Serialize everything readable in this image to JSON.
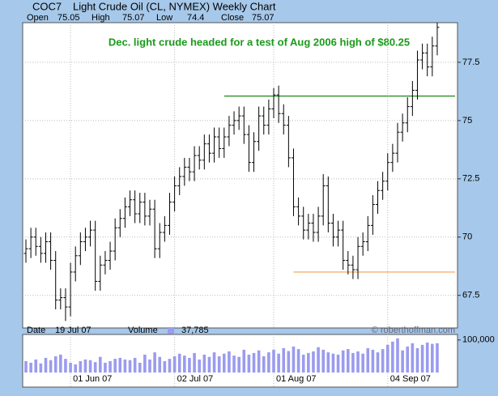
{
  "chart_data": {
    "type": "ohlc",
    "symbol": "COC7",
    "title": "Light Crude Oil (CL, NYMEX) Weekly Chart",
    "stats": [
      {
        "label": "Open",
        "value": 75.05
      },
      {
        "label": "High",
        "value": 75.07
      },
      {
        "label": "Low",
        "value": 74.4
      },
      {
        "label": "Close",
        "value": 75.07
      }
    ],
    "annotation": "Dec. light crude headed for a test of Aug 2006 high of $80.25",
    "annotation_color": "#1a9a1a",
    "footer": {
      "date_label": "Date",
      "date": "19 Jul 07",
      "credit": "© roberthoffman.com"
    },
    "categories": [
      null,
      null,
      null,
      null,
      null,
      null,
      null,
      null,
      null,
      "01 Jun 07",
      null,
      null,
      null,
      null,
      null,
      null,
      null,
      null,
      null,
      null,
      null,
      null,
      null,
      null,
      null,
      null,
      null,
      null,
      null,
      null,
      "02 Jul 07",
      null,
      null,
      null,
      null,
      null,
      null,
      null,
      null,
      null,
      null,
      null,
      null,
      null,
      null,
      null,
      null,
      null,
      null,
      null,
      "01 Aug 07",
      null,
      null,
      null,
      null,
      null,
      null,
      null,
      null,
      null,
      null,
      null,
      null,
      null,
      null,
      null,
      null,
      null,
      null,
      null,
      null,
      null,
      null,
      "04 Sep 07",
      null,
      null,
      null,
      null,
      null,
      null,
      null,
      null,
      null,
      null
    ],
    "open": [
      69.3,
      69.5,
      70.0,
      69.6,
      69.3,
      69.8,
      69.0,
      67.3,
      67.4,
      67.0,
      68.5,
      69.2,
      69.8,
      70.0,
      70.3,
      68.1,
      68.8,
      69.0,
      69.4,
      70.4,
      70.8,
      71.3,
      71.6,
      71.0,
      71.5,
      70.9,
      71.2,
      69.5,
      70.2,
      70.5,
      71.5,
      72.2,
      72.6,
      73.0,
      72.8,
      73.5,
      73.3,
      74.0,
      73.6,
      74.3,
      73.8,
      74.3,
      74.8,
      75.0,
      75.2,
      74.4,
      73.2,
      74.1,
      75.2,
      74.8,
      75.5,
      76.1,
      75.3,
      74.8,
      73.4,
      71.3,
      70.9,
      70.3,
      70.6,
      70.2,
      70.9,
      72.2,
      70.6,
      70.0,
      70.3,
      69.0,
      68.8,
      68.6,
      69.6,
      69.8,
      70.5,
      71.4,
      72.0,
      72.4,
      73.2,
      73.6,
      74.5,
      74.9,
      75.6,
      76.3,
      77.6,
      77.9,
      77.3,
      78.2
    ],
    "high": [
      69.9,
      70.4,
      70.4,
      70.0,
      70.2,
      70.2,
      69.4,
      67.8,
      67.8,
      68.9,
      69.6,
      70.2,
      70.4,
      70.7,
      70.7,
      69.2,
      69.4,
      69.8,
      70.8,
      71.2,
      71.7,
      72.0,
      72.0,
      71.9,
      71.9,
      71.6,
      71.6,
      70.6,
      70.9,
      71.9,
      72.6,
      73.0,
      73.4,
      73.4,
      73.9,
      73.9,
      74.4,
      74.4,
      74.7,
      74.7,
      74.7,
      75.2,
      75.4,
      75.6,
      75.6,
      74.8,
      74.5,
      75.6,
      75.6,
      75.9,
      76.4,
      76.5,
      75.7,
      75.2,
      73.8,
      71.7,
      71.3,
      71.0,
      71.0,
      71.3,
      72.7,
      72.6,
      71.0,
      70.7,
      70.7,
      69.4,
      69.2,
      70.0,
      70.2,
      70.9,
      71.8,
      72.4,
      72.8,
      73.6,
      74.0,
      74.9,
      75.3,
      76.0,
      76.7,
      78.0,
      78.3,
      78.3,
      78.6,
      79.2
    ],
    "low": [
      68.9,
      69.1,
      69.2,
      68.9,
      68.9,
      68.6,
      66.9,
      66.9,
      66.4,
      66.6,
      68.1,
      68.8,
      69.4,
      69.6,
      67.7,
      67.7,
      68.4,
      68.6,
      69.0,
      70.0,
      70.4,
      70.9,
      70.6,
      70.6,
      70.5,
      70.5,
      69.1,
      69.1,
      69.8,
      70.1,
      71.1,
      71.8,
      72.2,
      72.4,
      72.4,
      72.9,
      72.9,
      73.2,
      73.2,
      73.4,
      73.4,
      73.9,
      74.4,
      74.6,
      74.0,
      72.8,
      72.8,
      73.7,
      74.4,
      74.4,
      75.1,
      74.9,
      74.4,
      73.0,
      70.9,
      70.5,
      69.9,
      69.9,
      69.8,
      69.8,
      70.5,
      70.2,
      69.6,
      69.6,
      68.6,
      68.4,
      68.2,
      68.2,
      69.2,
      69.4,
      70.1,
      71.0,
      71.6,
      72.0,
      72.8,
      73.2,
      74.1,
      74.5,
      75.2,
      75.9,
      77.2,
      76.9,
      76.9,
      77.8
    ],
    "close": [
      69.5,
      70.0,
      69.6,
      69.3,
      69.8,
      69.0,
      67.3,
      67.4,
      67.0,
      68.5,
      69.2,
      69.8,
      70.0,
      70.3,
      68.1,
      68.8,
      69.0,
      69.4,
      70.4,
      70.8,
      71.3,
      71.6,
      71.0,
      71.5,
      70.9,
      71.2,
      69.5,
      70.2,
      70.5,
      71.5,
      72.2,
      72.6,
      73.0,
      72.8,
      73.5,
      73.3,
      74.0,
      73.6,
      74.3,
      73.8,
      74.3,
      74.8,
      75.0,
      75.2,
      74.4,
      73.2,
      74.1,
      75.2,
      74.8,
      75.5,
      76.1,
      75.3,
      74.8,
      73.4,
      71.3,
      70.9,
      70.3,
      70.6,
      70.2,
      70.9,
      72.2,
      70.6,
      70.0,
      70.3,
      69.0,
      68.8,
      68.6,
      69.6,
      69.8,
      70.5,
      71.4,
      72.0,
      72.4,
      73.2,
      73.6,
      74.5,
      74.9,
      75.6,
      76.3,
      77.6,
      77.9,
      77.3,
      78.2,
      79.0
    ],
    "color": "#000000",
    "ylim": [
      66.1,
      79.2
    ],
    "yticks": [
      67.5,
      70,
      72.5,
      75,
      77.5
    ],
    "grid": true,
    "reference_lines": [
      {
        "value": 76.05,
        "x_start": 40,
        "color": "#1a8a1a"
      },
      {
        "value": 68.5,
        "x_start": 54,
        "color": "#f0a050"
      }
    ],
    "volume": {
      "name": "Volume",
      "current": "37,785",
      "color": "#9b9bef",
      "values": [
        35000,
        30000,
        40000,
        28000,
        45000,
        38000,
        50000,
        55000,
        42000,
        30000,
        25000,
        35000,
        40000,
        38000,
        32000,
        48000,
        30000,
        35000,
        42000,
        45000,
        40000,
        38000,
        45000,
        30000,
        55000,
        40000,
        62000,
        48000,
        35000,
        42000,
        50000,
        58000,
        52000,
        45000,
        60000,
        40000,
        55000,
        48000,
        62000,
        50000,
        58000,
        65000,
        52000,
        48000,
        70000,
        55000,
        60000,
        68000,
        50000,
        62000,
        70000,
        58000,
        75000,
        66000,
        80000,
        72000,
        55000,
        60000,
        65000,
        78000,
        70000,
        62000,
        58000,
        55000,
        68000,
        72000,
        60000,
        65000,
        58000,
        75000,
        70000,
        62000,
        72000,
        85000,
        95000,
        105000,
        68000,
        80000,
        90000,
        75000,
        85000,
        92000,
        88000,
        90000
      ],
      "ylim": [
        0,
        122000
      ],
      "yticks": [
        {
          "value": 100000,
          "label": "100,000"
        }
      ]
    }
  }
}
